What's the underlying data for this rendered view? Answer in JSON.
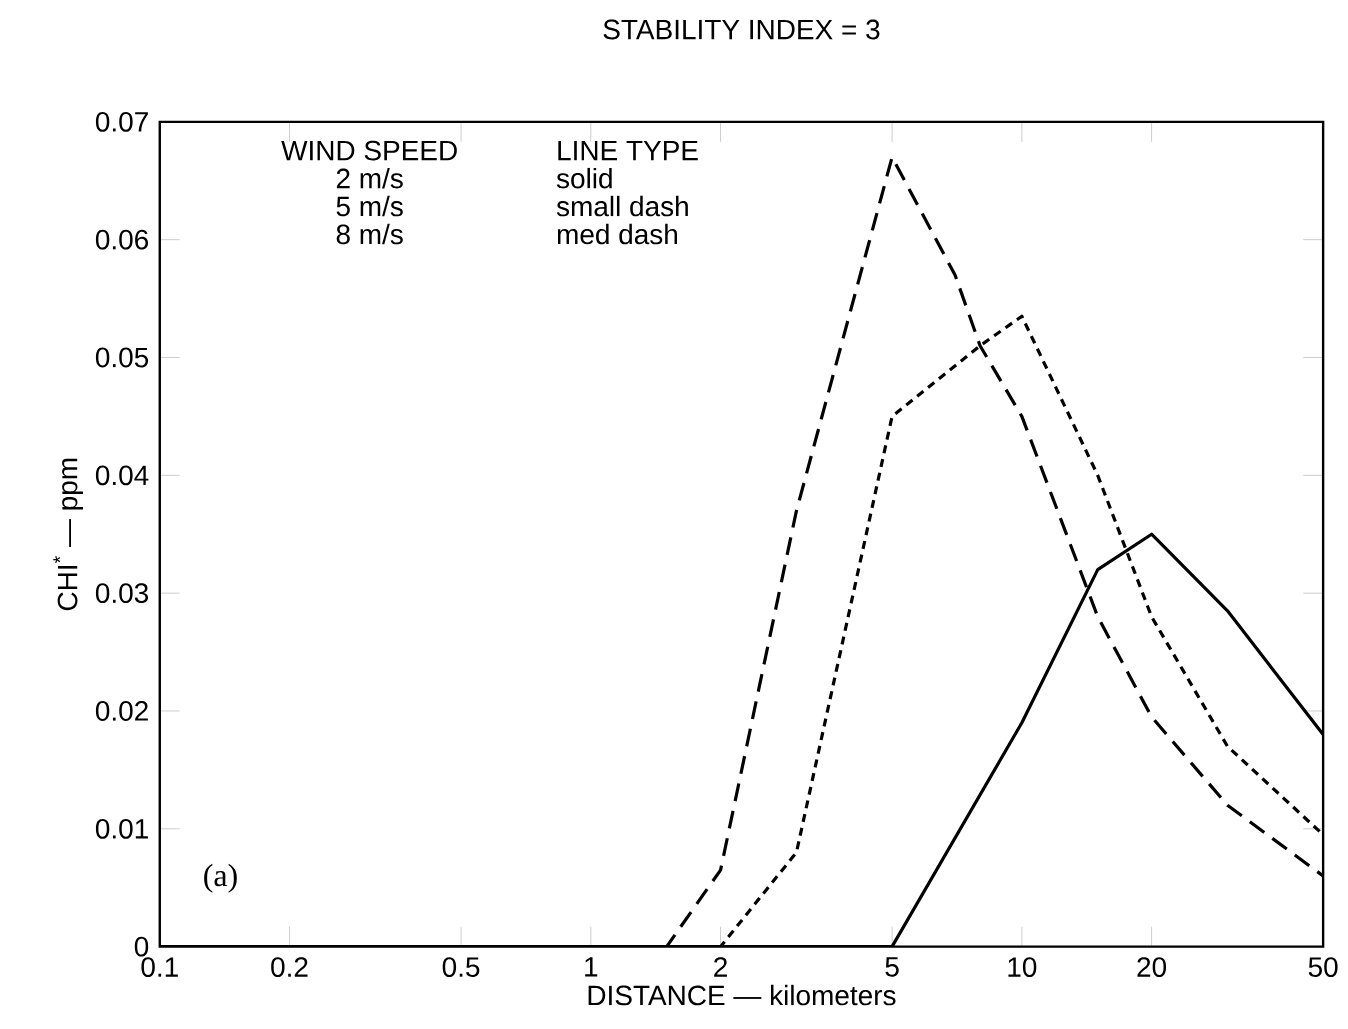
{
  "chart_data": {
    "type": "line",
    "title": "STABILITY INDEX = 3",
    "xlabel": "DISTANCE — kilometers",
    "ylabel": "CHI$^{*}$ — ppm",
    "log": "x",
    "xlim": [
      0.1,
      50
    ],
    "ylim": [
      0,
      0.07
    ],
    "xticks": [
      0.1,
      0.2,
      0.5,
      1,
      2,
      5,
      10,
      20,
      50
    ],
    "yticks": [
      0,
      0.01,
      0.02,
      0.03,
      0.04,
      0.05,
      0.06,
      0.07
    ],
    "grid": false,
    "marker": "none",
    "series": [
      {
        "color": "#000000",
        "line_style": "solid",
        "x": [
          0.1,
          5,
          10,
          15,
          20,
          30,
          50
        ],
        "values": [
          0,
          0,
          0.019,
          0.032,
          0.035,
          0.0285,
          0.018
        ]
      },
      {
        "color": "#000000",
        "line_style": "dotted",
        "x": [
          0.1,
          2,
          3,
          5,
          8,
          10,
          15,
          20,
          30,
          50
        ],
        "values": [
          0,
          0,
          0.008,
          0.045,
          0.051,
          0.0535,
          0.04,
          0.028,
          0.017,
          0.0095
        ]
      },
      {
        "color": "#000000",
        "line_style": "dashed",
        "x": [
          0.1,
          1.5,
          2,
          3,
          5,
          7,
          8,
          10,
          15,
          20,
          30,
          50
        ],
        "values": [
          0,
          0,
          0.0065,
          0.037,
          0.067,
          0.057,
          0.051,
          0.045,
          0.028,
          0.0195,
          0.012,
          0.006
        ]
      }
    ],
    "annotations": [
      "WIND SPEED",
      "LINE TYPE",
      "2 m/s",
      "solid",
      "5 m/s",
      "small dash",
      "8 m/s",
      "med dash",
      "(a)"
    ]
  }
}
